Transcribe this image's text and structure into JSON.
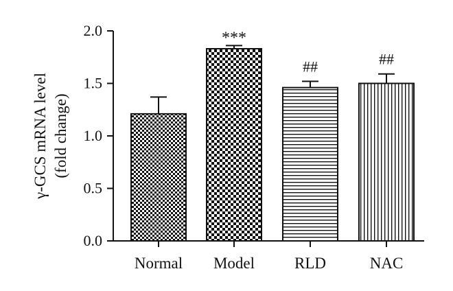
{
  "chart_data": {
    "type": "bar",
    "categories": [
      "Normal",
      "Model",
      "RLD",
      "NAC"
    ],
    "values": [
      1.21,
      1.83,
      1.46,
      1.5
    ],
    "errors": [
      0.16,
      0.03,
      0.06,
      0.09
    ],
    "annotations": [
      "",
      "***",
      "##",
      "##"
    ],
    "ylabel_line1": "γ-GCS mRNA level",
    "ylabel_line2": "(fold change)",
    "ylim": [
      0.0,
      2.0
    ],
    "yticks": [
      "0.0",
      "0.5",
      "1.0",
      "1.5",
      "2.0"
    ],
    "ytick_values": [
      0.0,
      0.5,
      1.0,
      1.5,
      2.0
    ],
    "patterns": [
      "fine-checker",
      "coarse-checker",
      "horizontal-lines",
      "vertical-lines"
    ],
    "grid": false,
    "colors": {
      "ink": "#111111",
      "background": "#ffffff"
    }
  }
}
